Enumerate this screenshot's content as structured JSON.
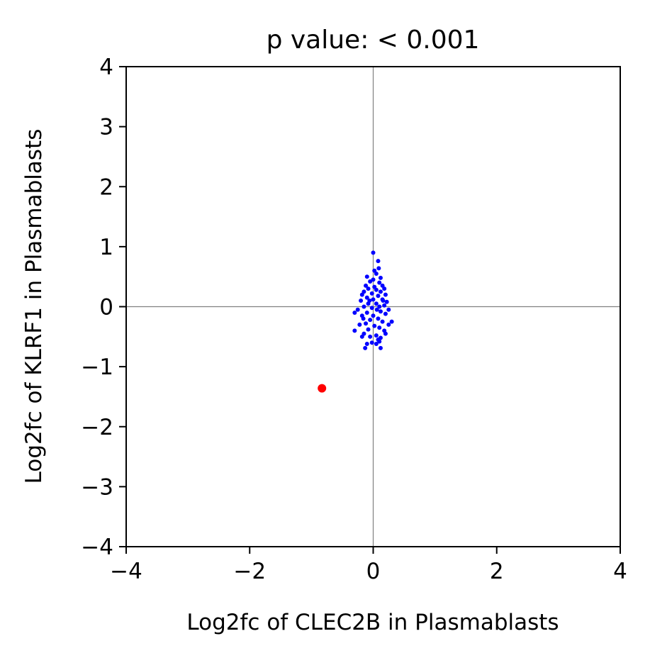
{
  "chart_data": {
    "type": "scatter",
    "title": "p value: < 0.001",
    "xlabel": "Log2fc of CLEC2B in Plasmablasts",
    "ylabel": "Log2fc of KLRF1 in Plasmablasts",
    "xlim": [
      -4,
      4
    ],
    "ylim": [
      -4,
      4
    ],
    "xticks": [
      -4,
      -2,
      0,
      2,
      4
    ],
    "yticks": [
      -4,
      -3,
      -2,
      -1,
      0,
      1,
      2,
      3,
      4
    ],
    "reference_lines": {
      "x": 0,
      "y": 0,
      "color": "#808080"
    },
    "grid": false,
    "legend": "none",
    "series": [
      {
        "color": "#0000ff",
        "points": [
          [
            0.0,
            0.9
          ],
          [
            0.08,
            0.76
          ],
          [
            0.09,
            0.64
          ],
          [
            0.02,
            0.6
          ],
          [
            0.05,
            0.55
          ],
          [
            -0.1,
            0.5
          ],
          [
            0.12,
            0.48
          ],
          [
            0.0,
            0.45
          ],
          [
            -0.05,
            0.42
          ],
          [
            0.1,
            0.4
          ],
          [
            -0.12,
            0.35
          ],
          [
            0.15,
            0.35
          ],
          [
            0.02,
            0.33
          ],
          [
            -0.08,
            0.3
          ],
          [
            0.18,
            0.3
          ],
          [
            0.05,
            0.28
          ],
          [
            -0.15,
            0.25
          ],
          [
            0.12,
            0.25
          ],
          [
            -0.02,
            0.22
          ],
          [
            0.2,
            0.2
          ],
          [
            -0.18,
            0.2
          ],
          [
            0.08,
            0.18
          ],
          [
            -0.1,
            0.15
          ],
          [
            0.15,
            0.12
          ],
          [
            0.0,
            0.12
          ],
          [
            -0.2,
            0.1
          ],
          [
            0.22,
            0.08
          ],
          [
            0.05,
            0.05
          ],
          [
            -0.08,
            0.05
          ],
          [
            0.18,
            0.02
          ],
          [
            -0.15,
            0.0
          ],
          [
            0.1,
            0.0
          ],
          [
            -0.02,
            -0.02
          ],
          [
            0.25,
            -0.05
          ],
          [
            -0.25,
            -0.05
          ],
          [
            -0.3,
            -0.1
          ],
          [
            0.12,
            -0.08
          ],
          [
            -0.1,
            -0.1
          ],
          [
            0.2,
            -0.12
          ],
          [
            0.0,
            -0.15
          ],
          [
            -0.18,
            -0.15
          ],
          [
            0.3,
            -0.25
          ],
          [
            0.08,
            -0.2
          ],
          [
            -0.05,
            -0.22
          ],
          [
            0.15,
            -0.25
          ],
          [
            -0.12,
            -0.28
          ],
          [
            0.25,
            -0.3
          ],
          [
            -0.22,
            -0.3
          ],
          [
            0.02,
            -0.32
          ],
          [
            -0.3,
            -0.4
          ],
          [
            0.1,
            -0.35
          ],
          [
            -0.08,
            -0.38
          ],
          [
            0.18,
            -0.4
          ],
          [
            0.2,
            -0.45
          ],
          [
            -0.15,
            -0.45
          ],
          [
            0.05,
            -0.48
          ],
          [
            -0.05,
            -0.5
          ],
          [
            0.12,
            -0.52
          ],
          [
            -0.18,
            -0.5
          ],
          [
            0.1,
            -0.58
          ],
          [
            -0.02,
            -0.6
          ],
          [
            -0.1,
            -0.62
          ],
          [
            0.08,
            -0.55
          ],
          [
            -0.13,
            -0.69
          ],
          [
            0.12,
            -0.69
          ],
          [
            0.05,
            -0.62
          ],
          [
            -0.06,
            0.1
          ],
          [
            0.06,
            -0.05
          ],
          [
            0.16,
            0.1
          ],
          [
            -0.16,
            -0.2
          ]
        ]
      },
      {
        "color": "#ff0000",
        "points": [
          [
            -0.83,
            -1.36
          ]
        ]
      }
    ]
  }
}
